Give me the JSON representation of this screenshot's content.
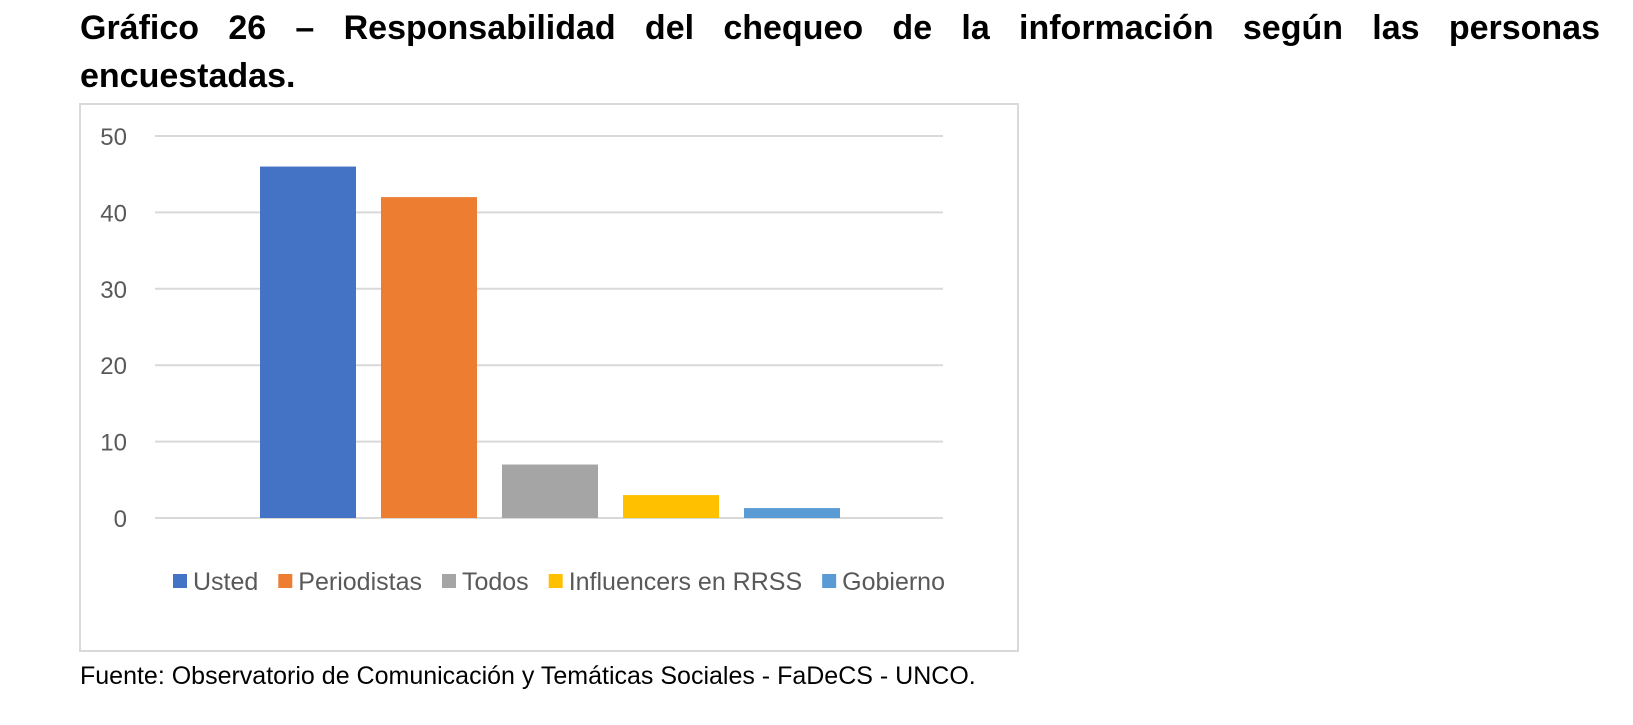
{
  "document": {
    "title": "Gráfico 26 – Responsabilidad del chequeo de la información según las personas encuestadas.",
    "source": "Fuente: Observatorio de Comunicación y Temáticas Sociales - FaDeCS - UNCO."
  },
  "chart_data": {
    "type": "bar",
    "categories": [
      "Usted",
      "Periodistas",
      "Todos",
      "Influencers en RRSS",
      "Gobierno"
    ],
    "values": [
      46,
      42,
      7,
      3,
      1.3
    ],
    "colors": [
      "#4472c4",
      "#ed7d31",
      "#a5a5a5",
      "#ffc000",
      "#5b9bd5"
    ],
    "title": "",
    "xlabel": "",
    "ylabel": "",
    "ylim": [
      0,
      50
    ],
    "yticks": [
      0,
      10,
      20,
      30,
      40,
      50
    ],
    "grid": true,
    "legend_position": "bottom",
    "gridline_color": "#d9d9d9",
    "tick_label_color": "#595959"
  }
}
